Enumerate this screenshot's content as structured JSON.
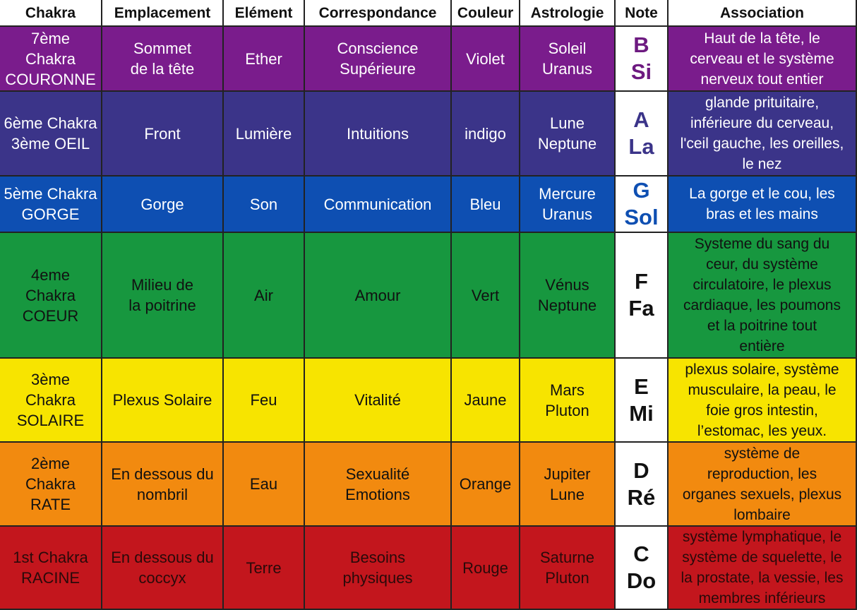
{
  "header": [
    "Chakra",
    "Emplacement",
    "Elément",
    "Correspondance",
    "Couleur",
    "Astrologie",
    "Note",
    "Association"
  ],
  "rows": [
    [
      [
        "7ème",
        "Chakra",
        "COURONNE"
      ],
      [
        "Sommet",
        "de la tête"
      ],
      [
        "Ether"
      ],
      [
        "Conscience",
        "Supérieure"
      ],
      [
        "Violet"
      ],
      [
        "Soleil",
        "Uranus"
      ],
      [
        "B",
        "Si"
      ],
      [
        "Haut de la tête, le",
        "cerveau et le système",
        "nerveux tout entier"
      ]
    ],
    [
      [
        "6ème Chakra",
        "3ème OEIL"
      ],
      [
        "Front"
      ],
      [
        "Lumière"
      ],
      [
        "Intuitions"
      ],
      [
        "indigo"
      ],
      [
        "Lune",
        "Neptune"
      ],
      [
        "A",
        "La"
      ],
      [
        "glande prituitaire,",
        "inférieure du cerveau,",
        "l'ceil gauche, les oreilles,",
        "le nez"
      ]
    ],
    [
      [
        "5ème Chakra",
        "GORGE"
      ],
      [
        "Gorge"
      ],
      [
        "Son"
      ],
      [
        "Communication"
      ],
      [
        "Bleu"
      ],
      [
        "Mercure",
        "Uranus"
      ],
      [
        "G",
        "Sol"
      ],
      [
        "La gorge et le cou, les",
        "bras et les mains"
      ]
    ],
    [
      [
        "4eme",
        "Chakra",
        "COEUR"
      ],
      [
        "Milieu de",
        "la poitrine"
      ],
      [
        "Air"
      ],
      [
        "Amour"
      ],
      [
        "Vert"
      ],
      [
        "Vénus",
        "Neptune"
      ],
      [
        "F",
        "Fa"
      ],
      [
        "Systeme du sang du",
        "ceur, du système",
        "circulatoire, le plexus",
        "cardiaque, les poumons",
        "et la poitrine tout",
        "entière"
      ]
    ],
    [
      [
        "3ème",
        "Chakra",
        "SOLAIRE"
      ],
      [
        "Plexus Solaire"
      ],
      [
        "Feu"
      ],
      [
        "Vitalité"
      ],
      [
        "Jaune"
      ],
      [
        "Mars",
        "Pluton"
      ],
      [
        "E",
        "Mi"
      ],
      [
        "plexus solaire, système",
        "musculaire, la peau, le",
        "foie gros intestin,",
        "l’estomac, les yeux."
      ]
    ],
    [
      [
        "2ème",
        "Chakra",
        "RATE"
      ],
      [
        "En dessous du",
        "nombril"
      ],
      [
        "Eau"
      ],
      [
        "Sexualité",
        "Emotions"
      ],
      [
        "Orange"
      ],
      [
        "Jupiter",
        "Lune"
      ],
      [
        "D",
        "Ré"
      ],
      [
        "système de",
        "reproduction, les",
        "organes sexuels, plexus",
        "lombaire"
      ]
    ],
    [
      [
        "1st Chakra",
        "RACINE"
      ],
      [
        "En dessous du",
        "coccyx"
      ],
      [
        "Terre"
      ],
      [
        "Besoins",
        "physiques"
      ],
      [
        "Rouge"
      ],
      [
        "Saturne",
        "Pluton"
      ],
      [
        "C",
        "Do"
      ],
      [
        "système lymphatique, le",
        "système de squelette, le",
        "la prostate, la vessie, les",
        "membres inférieurs"
      ]
    ]
  ]
}
